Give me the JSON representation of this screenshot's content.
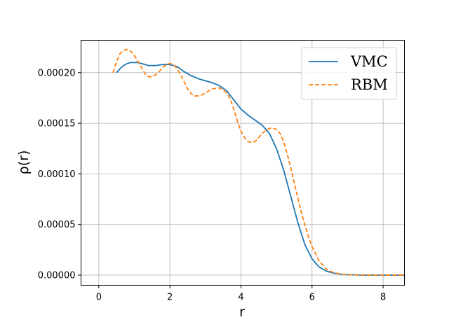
{
  "colors": {
    "grid": "#b0b0b0",
    "axes": "#000000",
    "background": "#ffffff"
  },
  "chart_data": {
    "type": "line",
    "title": "",
    "xlabel": "r",
    "ylabel": "ρ(r)",
    "xlim": [
      -0.5,
      8.6
    ],
    "ylim": [
      -1e-05,
      0.000232
    ],
    "grid": true,
    "legend_position": "top-right",
    "x_ticks": [
      0,
      2,
      4,
      6,
      8
    ],
    "x_tick_labels": [
      "0",
      "2",
      "4",
      "6",
      "8"
    ],
    "y_ticks": [
      0,
      5e-05,
      0.0001,
      0.00015,
      0.0002
    ],
    "y_tick_labels": [
      "0.00000",
      "0.00005",
      "0.00010",
      "0.00015",
      "0.00020"
    ],
    "series": [
      {
        "name": "VMC",
        "color": "#1f77b4",
        "linestyle": "solid",
        "x": [
          0.5,
          0.6,
          0.7,
          0.8,
          0.9,
          1.0,
          1.1,
          1.2,
          1.4,
          1.6,
          1.8,
          2.0,
          2.2,
          2.4,
          2.6,
          2.8,
          3.0,
          3.2,
          3.4,
          3.6,
          3.8,
          4.0,
          4.2,
          4.4,
          4.6,
          4.8,
          5.0,
          5.2,
          5.4,
          5.6,
          5.8,
          6.0,
          6.2,
          6.4,
          6.6,
          6.8,
          7.0,
          7.5,
          8.0,
          8.6
        ],
        "y": [
          0.0002,
          0.000204,
          0.000207,
          0.000209,
          0.00021,
          0.00021,
          0.00021,
          0.000209,
          0.000207,
          0.000207,
          0.000208,
          0.000208,
          0.000206,
          0.000201,
          0.000197,
          0.000194,
          0.000192,
          0.00019,
          0.000187,
          0.000182,
          0.000173,
          0.000164,
          0.000158,
          0.000153,
          0.000148,
          0.00014,
          0.000125,
          0.000104,
          7.8e-05,
          5.2e-05,
          3e-05,
          1.6e-05,
          8e-06,
          4e-06,
          2e-06,
          1e-06,
          4e-07,
          0.0,
          0.0,
          0.0
        ]
      },
      {
        "name": "RBM",
        "color": "#ff7f0e",
        "linestyle": "dashed",
        "x": [
          0.4,
          0.5,
          0.6,
          0.7,
          0.8,
          0.9,
          1.0,
          1.1,
          1.2,
          1.3,
          1.4,
          1.5,
          1.6,
          1.7,
          1.8,
          1.9,
          2.0,
          2.1,
          2.2,
          2.3,
          2.4,
          2.5,
          2.6,
          2.7,
          2.8,
          2.9,
          3.0,
          3.2,
          3.4,
          3.6,
          3.7,
          3.8,
          3.9,
          4.0,
          4.1,
          4.2,
          4.3,
          4.4,
          4.5,
          4.6,
          4.7,
          4.8,
          4.9,
          5.0,
          5.1,
          5.2,
          5.3,
          5.4,
          5.5,
          5.6,
          5.7,
          5.8,
          5.9,
          6.0,
          6.2,
          6.4,
          6.6,
          6.8,
          7.0,
          7.5,
          8.0,
          8.6
        ],
        "y": [
          0.0002,
          0.000211,
          0.000219,
          0.000222,
          0.000223,
          0.000221,
          0.000217,
          0.000211,
          0.000205,
          0.000199,
          0.000196,
          0.000196,
          0.000198,
          0.000201,
          0.000205,
          0.000208,
          0.000209,
          0.000208,
          0.000204,
          0.000198,
          0.000191,
          0.000184,
          0.000179,
          0.000177,
          0.000177,
          0.000178,
          0.00018,
          0.000184,
          0.000185,
          0.00018,
          0.000174,
          0.000164,
          0.000152,
          0.000142,
          0.000136,
          0.000132,
          0.000131,
          0.000132,
          0.000136,
          0.00014,
          0.000143,
          0.000145,
          0.000145,
          0.000144,
          0.00014,
          0.000132,
          0.00012,
          0.000106,
          9.1e-05,
          7.6e-05,
          6.2e-05,
          4.9e-05,
          3.8e-05,
          2.8e-05,
          1.4e-05,
          6e-06,
          2.5e-06,
          1e-06,
          3e-07,
          0.0,
          0.0,
          0.0
        ]
      }
    ]
  }
}
